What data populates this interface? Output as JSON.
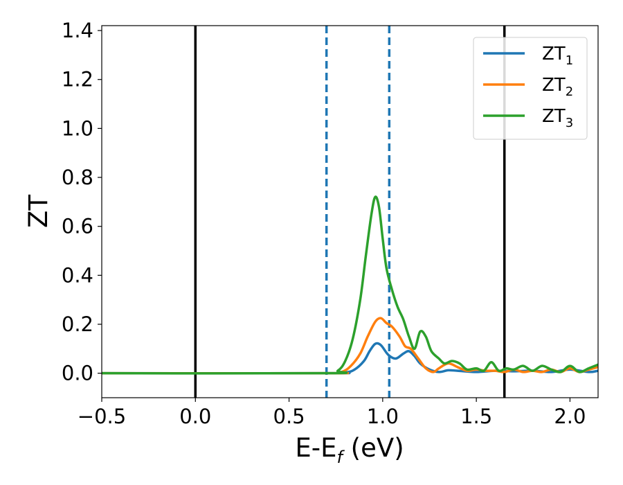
{
  "chart_data": {
    "type": "line",
    "xlabel": "E-E$_f$ (eV)",
    "xlabel_parts": {
      "main": "E-E",
      "sub": "f",
      "tail": " (eV)"
    },
    "ylabel": "ZT",
    "xlim": [
      -0.5,
      2.15
    ],
    "ylim": [
      -0.1,
      1.42
    ],
    "x_ticks": [
      -0.5,
      0.0,
      0.5,
      1.0,
      1.5,
      2.0
    ],
    "x_tick_labels": [
      "−0.5",
      "0.0",
      "0.5",
      "1.0",
      "1.5",
      "2.0"
    ],
    "y_ticks": [
      0.0,
      0.2,
      0.4,
      0.6,
      0.8,
      1.0,
      1.2,
      1.4
    ],
    "y_tick_labels": [
      "0.0",
      "0.2",
      "0.4",
      "0.6",
      "0.8",
      "1.0",
      "1.2",
      "1.4"
    ],
    "grid": false,
    "legend_position": "top-right",
    "vertical_lines": [
      {
        "x": 0.0,
        "color": "#000000",
        "style": "solid"
      },
      {
        "x": 1.65,
        "color": "#000000",
        "style": "solid"
      },
      {
        "x": 0.7,
        "color": "#1f77b4",
        "style": "dashed"
      },
      {
        "x": 1.035,
        "color": "#1f77b4",
        "style": "dashed"
      }
    ],
    "series": [
      {
        "name": "ZT1",
        "legend": {
          "main": "ZT",
          "sub": "1"
        },
        "color": "#1f77b4",
        "x": [
          -0.5,
          0.7,
          0.8,
          0.85,
          0.9,
          0.93,
          0.96,
          0.99,
          1.03,
          1.07,
          1.11,
          1.14,
          1.17,
          1.2,
          1.25,
          1.3,
          1.35,
          1.4,
          1.5,
          1.6,
          1.7,
          1.8,
          1.9,
          2.0,
          2.1,
          2.15
        ],
        "y": [
          0.0,
          0.0,
          0.003,
          0.015,
          0.05,
          0.09,
          0.12,
          0.115,
          0.075,
          0.06,
          0.08,
          0.09,
          0.07,
          0.04,
          0.015,
          0.005,
          0.012,
          0.01,
          0.005,
          0.01,
          0.008,
          0.01,
          0.005,
          0.015,
          0.005,
          0.01
        ]
      },
      {
        "name": "ZT2",
        "legend": {
          "main": "ZT",
          "sub": "2"
        },
        "color": "#ff7f0e",
        "x": [
          -0.5,
          0.7,
          0.78,
          0.83,
          0.88,
          0.92,
          0.96,
          0.99,
          1.02,
          1.05,
          1.09,
          1.12,
          1.15,
          1.19,
          1.23,
          1.27,
          1.3,
          1.35,
          1.4,
          1.45,
          1.5,
          1.55,
          1.6,
          1.65,
          1.7,
          1.75,
          1.8,
          1.85,
          1.9,
          1.95,
          2.0,
          2.05,
          2.1,
          2.15
        ],
        "y": [
          0.0,
          0.0,
          0.005,
          0.03,
          0.08,
          0.15,
          0.21,
          0.225,
          0.205,
          0.19,
          0.15,
          0.11,
          0.1,
          0.06,
          0.02,
          0.005,
          0.02,
          0.04,
          0.025,
          0.01,
          0.015,
          0.01,
          0.01,
          0.005,
          0.015,
          0.005,
          0.01,
          0.005,
          0.015,
          0.005,
          0.02,
          0.005,
          0.015,
          0.025
        ]
      },
      {
        "name": "ZT3",
        "legend": {
          "main": "ZT",
          "sub": "3"
        },
        "color": "#2ca02c",
        "x": [
          -0.5,
          0.7,
          0.76,
          0.8,
          0.84,
          0.88,
          0.91,
          0.94,
          0.96,
          0.98,
          1.0,
          1.02,
          1.05,
          1.08,
          1.11,
          1.14,
          1.17,
          1.2,
          1.23,
          1.26,
          1.3,
          1.33,
          1.37,
          1.41,
          1.45,
          1.5,
          1.54,
          1.58,
          1.62,
          1.66,
          1.7,
          1.75,
          1.8,
          1.85,
          1.9,
          1.95,
          2.0,
          2.05,
          2.1,
          2.15
        ],
        "y": [
          0.0,
          0.0,
          0.01,
          0.05,
          0.14,
          0.3,
          0.48,
          0.65,
          0.72,
          0.68,
          0.55,
          0.43,
          0.34,
          0.27,
          0.22,
          0.15,
          0.1,
          0.17,
          0.15,
          0.09,
          0.06,
          0.04,
          0.05,
          0.04,
          0.015,
          0.02,
          0.01,
          0.045,
          0.01,
          0.02,
          0.015,
          0.03,
          0.01,
          0.03,
          0.015,
          0.005,
          0.03,
          0.005,
          0.02,
          0.035
        ]
      }
    ]
  }
}
